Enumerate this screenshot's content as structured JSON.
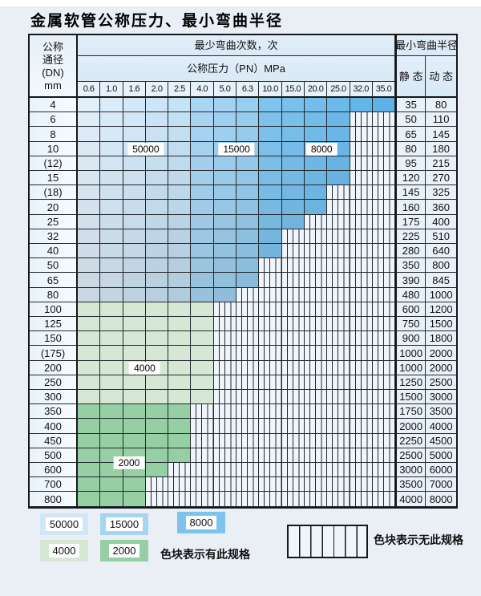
{
  "title": "金属软管公称压力、最小弯曲半径",
  "table": {
    "header": {
      "dn_lines": [
        "公称",
        "通径",
        "(DN)",
        "mm"
      ],
      "bend_cycles": "最少弯曲次数，次",
      "pressure_band": "公称压力（PN）MPa",
      "bend_radius": "最小弯曲半径",
      "static_label": "静 态",
      "dynamic_label": "动 态",
      "pressures": [
        "0.6",
        "1.0",
        "1.6",
        "2.0",
        "2.5",
        "4.0",
        "5.0",
        "6.3",
        "10.0",
        "15.0",
        "20.0",
        "25.0",
        "32.0",
        "35.0"
      ]
    },
    "rows": [
      {
        "dn": "4",
        "last": 13,
        "region": "blue",
        "static": "35",
        "dynamic": "80"
      },
      {
        "dn": "6",
        "last": 11,
        "region": "blue",
        "static": "50",
        "dynamic": "110"
      },
      {
        "dn": "8",
        "last": 11,
        "region": "blue",
        "static": "65",
        "dynamic": "145"
      },
      {
        "dn": "10",
        "last": 11,
        "region": "blue",
        "static": "80",
        "dynamic": "180"
      },
      {
        "dn": "(12)",
        "last": 11,
        "region": "blue",
        "static": "95",
        "dynamic": "215"
      },
      {
        "dn": "15",
        "last": 11,
        "region": "blue",
        "static": "120",
        "dynamic": "270"
      },
      {
        "dn": "(18)",
        "last": 10,
        "region": "blue",
        "static": "145",
        "dynamic": "325"
      },
      {
        "dn": "20",
        "last": 10,
        "region": "blue",
        "static": "160",
        "dynamic": "360"
      },
      {
        "dn": "25",
        "last": 9,
        "region": "blue",
        "static": "175",
        "dynamic": "400"
      },
      {
        "dn": "32",
        "last": 8,
        "region": "blue",
        "static": "225",
        "dynamic": "510"
      },
      {
        "dn": "40",
        "last": 8,
        "region": "blue",
        "static": "280",
        "dynamic": "640"
      },
      {
        "dn": "50",
        "last": 7,
        "region": "blue",
        "static": "350",
        "dynamic": "800"
      },
      {
        "dn": "65",
        "last": 7,
        "region": "blue",
        "static": "390",
        "dynamic": "845"
      },
      {
        "dn": "80",
        "last": 6,
        "region": "blue",
        "static": "480",
        "dynamic": "1000"
      },
      {
        "dn": "100",
        "last": 5,
        "region": "g4000",
        "static": "600",
        "dynamic": "1200"
      },
      {
        "dn": "125",
        "last": 5,
        "region": "g4000",
        "static": "750",
        "dynamic": "1500"
      },
      {
        "dn": "150",
        "last": 5,
        "region": "g4000",
        "static": "900",
        "dynamic": "1800"
      },
      {
        "dn": "(175)",
        "last": 5,
        "region": "g4000",
        "static": "1000",
        "dynamic": "2000"
      },
      {
        "dn": "200",
        "last": 5,
        "region": "g4000",
        "static": "1000",
        "dynamic": "2000"
      },
      {
        "dn": "250",
        "last": 5,
        "region": "g4000",
        "static": "1250",
        "dynamic": "2500"
      },
      {
        "dn": "300",
        "last": 5,
        "region": "g4000",
        "static": "1500",
        "dynamic": "3000"
      },
      {
        "dn": "350",
        "last": 4,
        "region": "g2000",
        "static": "1750",
        "dynamic": "3500"
      },
      {
        "dn": "400",
        "last": 4,
        "region": "g2000",
        "static": "2000",
        "dynamic": "4000"
      },
      {
        "dn": "450",
        "last": 4,
        "region": "g2000",
        "static": "2250",
        "dynamic": "4500"
      },
      {
        "dn": "500",
        "last": 4,
        "region": "g2000",
        "static": "2500",
        "dynamic": "5000"
      },
      {
        "dn": "600",
        "last": 3,
        "region": "g2000",
        "static": "3000",
        "dynamic": "6000"
      },
      {
        "dn": "700",
        "last": 2,
        "region": "g2000",
        "static": "3500",
        "dynamic": "7000"
      },
      {
        "dn": "800",
        "last": 2,
        "region": "g2000",
        "static": "4000",
        "dynamic": "8000"
      }
    ],
    "blue_bands": [
      {
        "name": "50000",
        "from": 0,
        "to": 4
      },
      {
        "name": "15000",
        "from": 5,
        "to": 7
      },
      {
        "name": "8000",
        "from": 8,
        "to": 13
      }
    ]
  },
  "region_labels": [
    {
      "text": "50000",
      "anchor_col": 3.0,
      "anchor_row": 3.5
    },
    {
      "text": "15000",
      "anchor_col": 7.0,
      "anchor_row": 3.5
    },
    {
      "text": "8000",
      "anchor_col": 10.75,
      "anchor_row": 3.5
    },
    {
      "text": "4000",
      "anchor_col": 2.95,
      "anchor_row": 18.5
    },
    {
      "text": "2000",
      "anchor_col": 2.26,
      "anchor_row": 25.0
    }
  ],
  "legend": {
    "items": [
      {
        "label": "50000",
        "color": "#cfe6f7"
      },
      {
        "label": "15000",
        "color": "#a5d5f1"
      },
      {
        "label": "8000",
        "color": "#7cc3ed"
      },
      {
        "label": "4000",
        "color": "#d6e7d5"
      },
      {
        "label": "2000",
        "color": "#96cfa3"
      }
    ],
    "has_spec_text": "色块表示有此规格",
    "no_spec_text": "色块表示无此规格"
  },
  "colors": {
    "blue_band_stops": [
      [
        "#e1effb",
        "#c6e2f5"
      ],
      [
        "#a9d6f3",
        "#98cef0"
      ],
      [
        "#7fc4ee",
        "#5fb2e7"
      ]
    ],
    "c4000": "#d6e7d5",
    "c2000": "#96cfa3",
    "hatch_bg": "#eff5fb"
  }
}
